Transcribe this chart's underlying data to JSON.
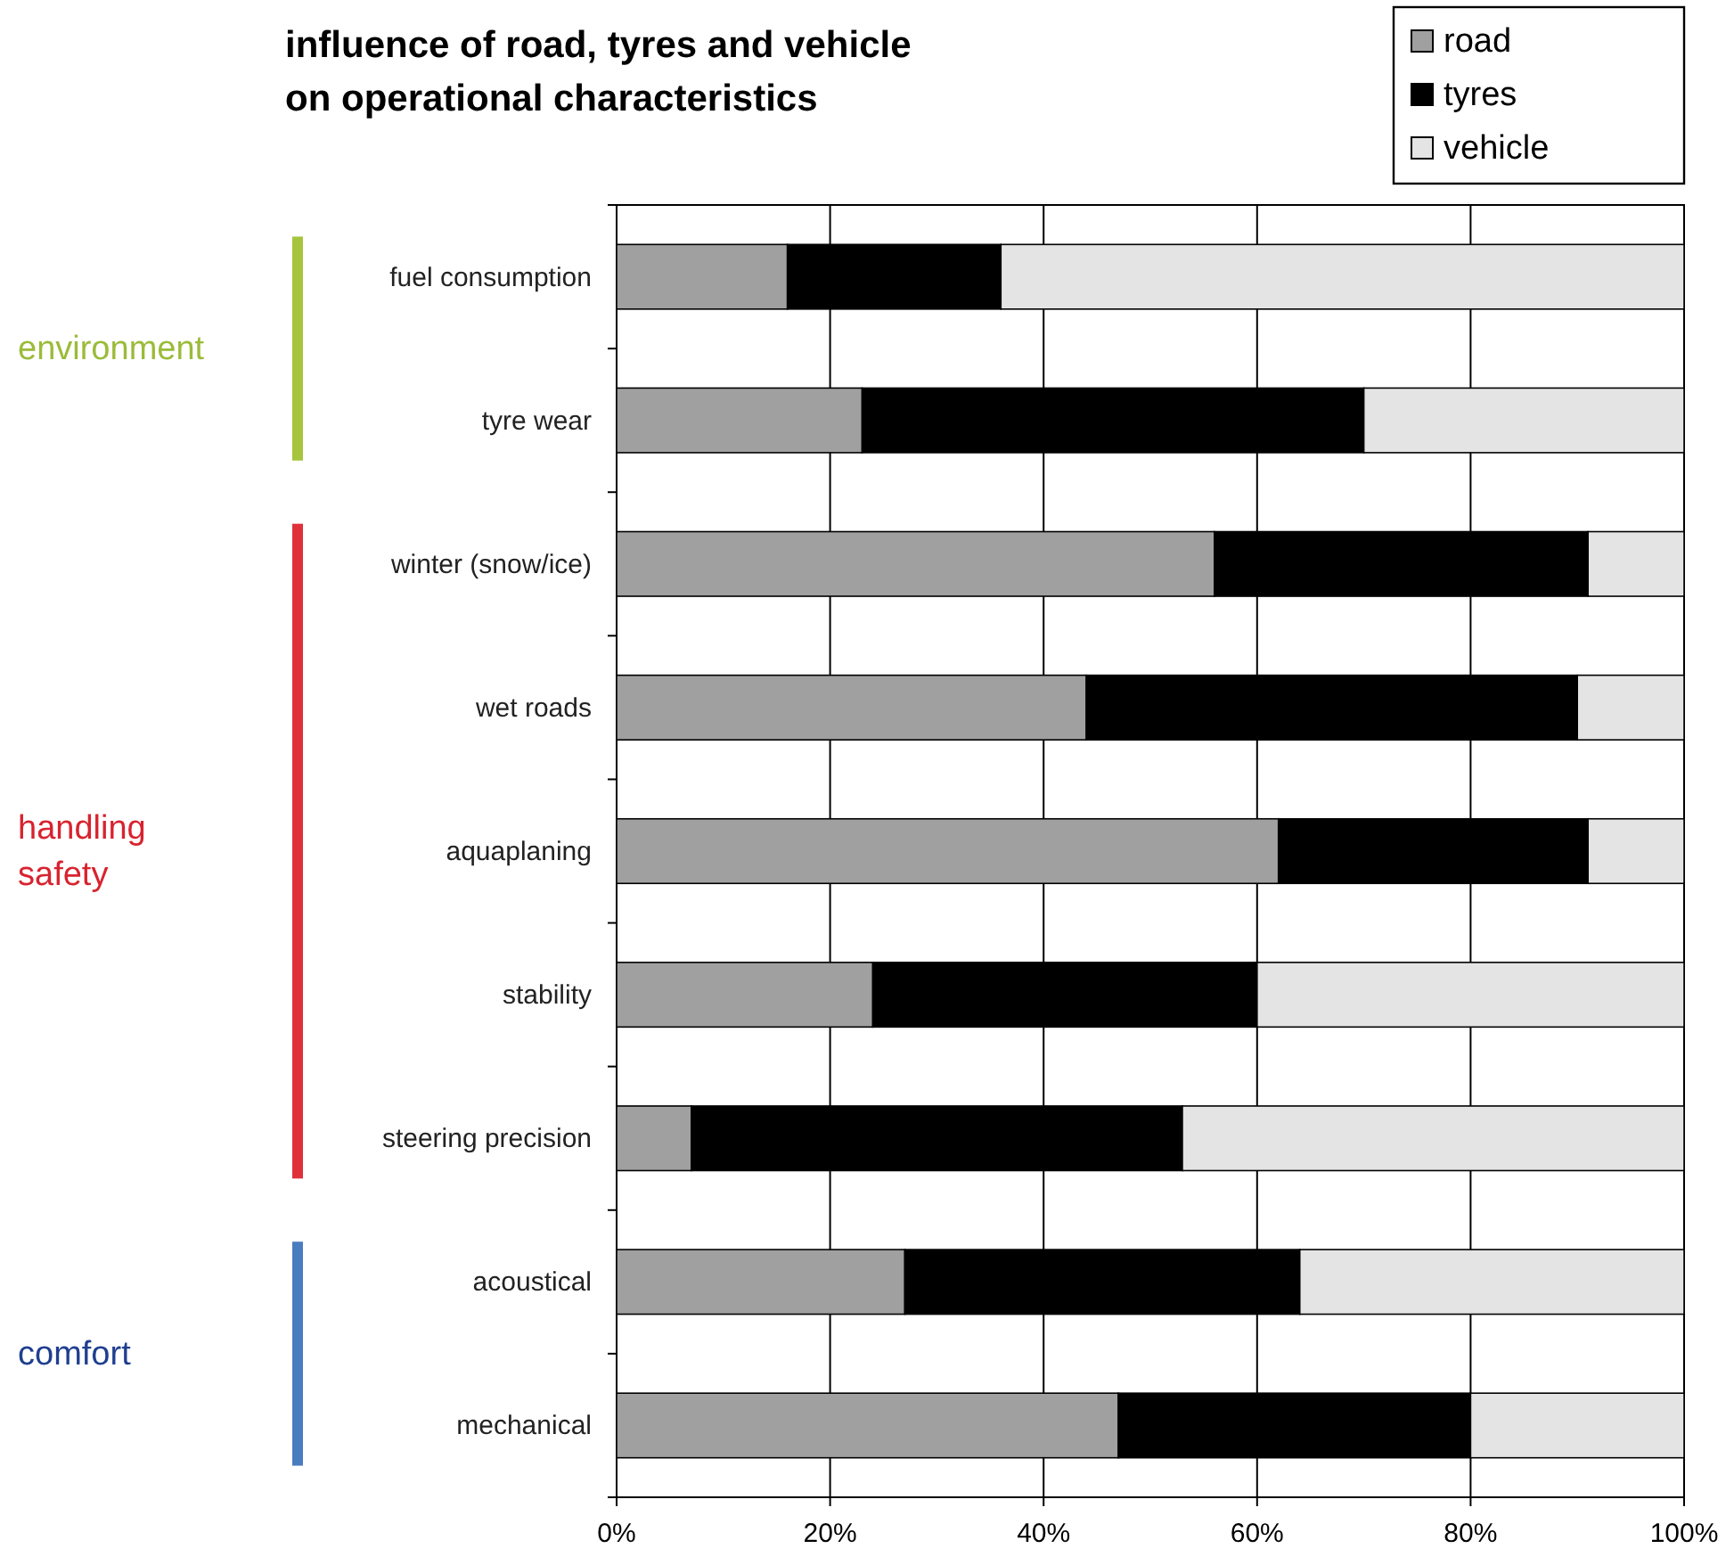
{
  "chart_data": {
    "type": "bar",
    "orientation": "horizontal",
    "stacked": true,
    "title": "influence of road, tyres and vehicle\non operational characteristics",
    "categories": [
      "fuel consumption",
      "tyre wear",
      "winter (snow/ice)",
      "wet roads",
      "aquaplaning",
      "stability",
      "steering precision",
      "acoustical",
      "mechanical"
    ],
    "series": [
      {
        "name": "road",
        "color": "#a0a0a0",
        "values": [
          16,
          23,
          56,
          44,
          62,
          24,
          7,
          27,
          47
        ]
      },
      {
        "name": "tyres",
        "color": "#000000",
        "values": [
          20,
          47,
          35,
          46,
          29,
          36,
          46,
          37,
          33
        ]
      },
      {
        "name": "vehicle",
        "color": "#e4e4e4",
        "values": [
          64,
          30,
          9,
          10,
          9,
          40,
          47,
          36,
          20
        ]
      }
    ],
    "xlim": [
      0,
      100
    ],
    "xticks": [
      {
        "value": 0,
        "label": "0%"
      },
      {
        "value": 20,
        "label": "20%"
      },
      {
        "value": 40,
        "label": "40%"
      },
      {
        "value": 60,
        "label": "60%"
      },
      {
        "value": 80,
        "label": "80%"
      },
      {
        "value": 100,
        "label": "100%"
      }
    ],
    "grid": "x",
    "legend": "top right",
    "annotations": [
      "environment",
      "handling safety",
      "comfort"
    ]
  }
}
